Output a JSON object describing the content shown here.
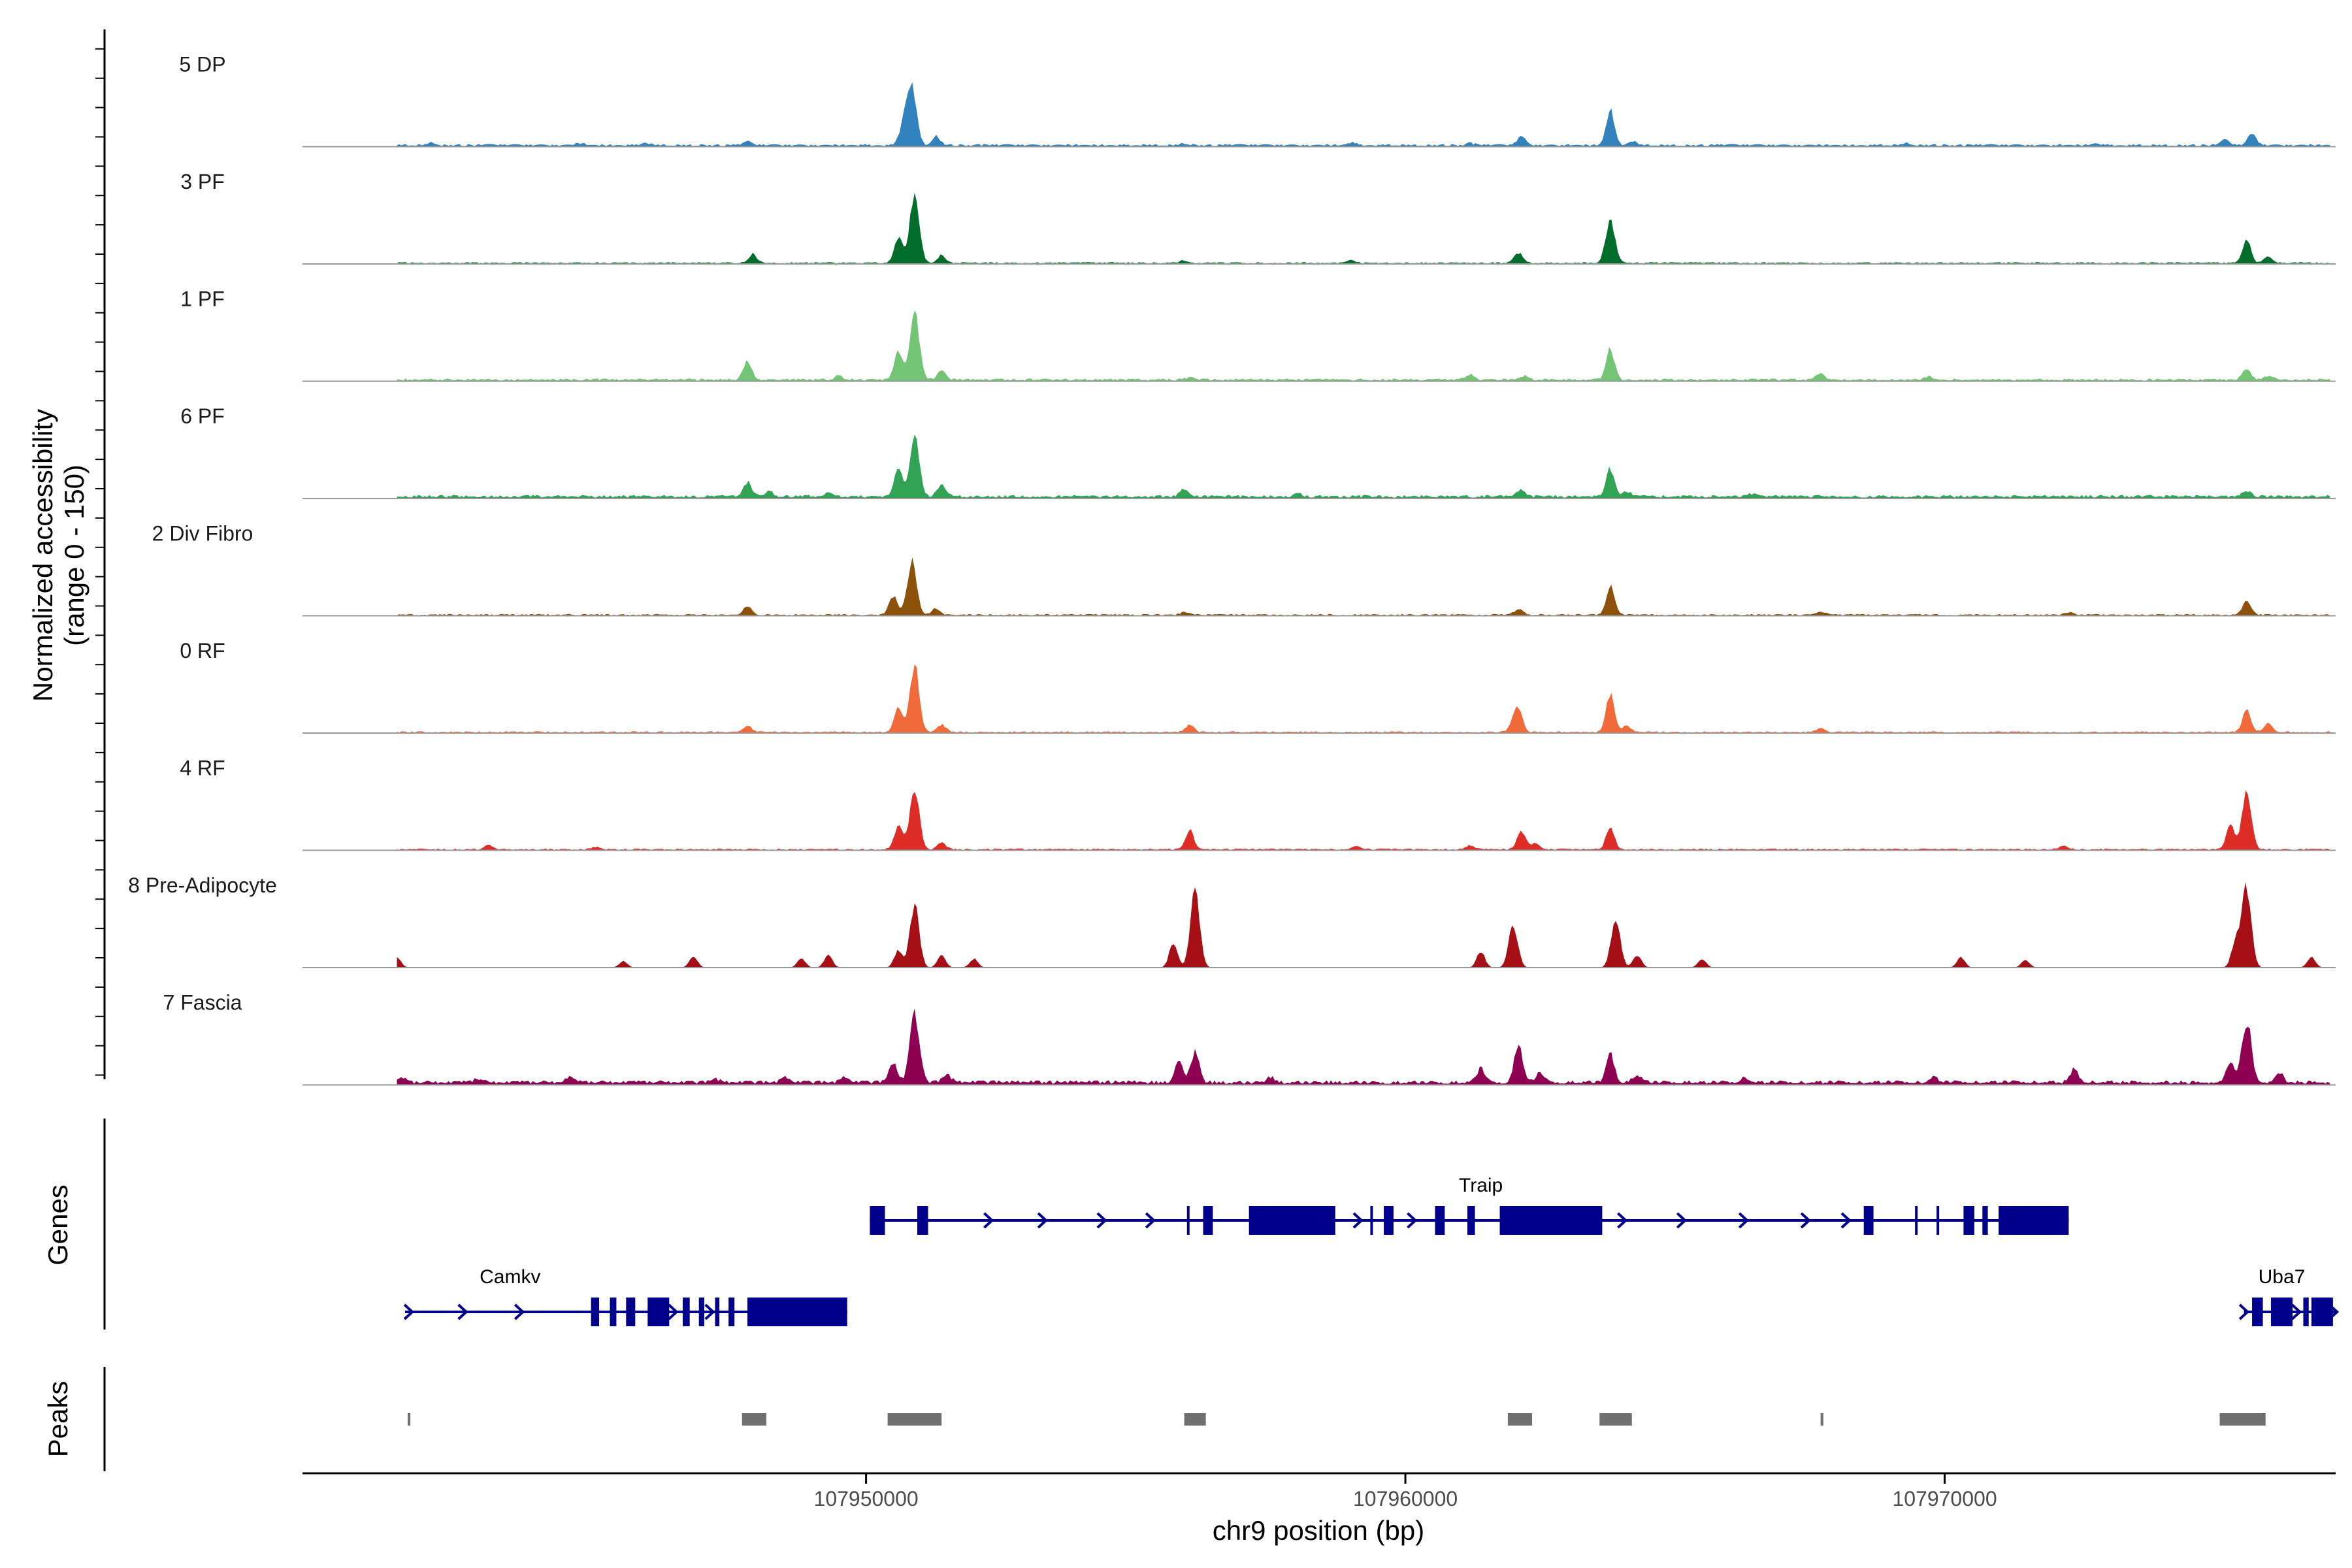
{
  "chart_data": {
    "type": "area",
    "title": "",
    "y_title_line1": "Normalized accessibility",
    "y_title_line2": "(range 0 - 150)",
    "ylim": [
      0,
      150
    ],
    "xlabel": "chr9 position (bp)",
    "xlim": [
      107939550,
      107977250
    ],
    "x_ticks": [
      107950000,
      107960000,
      107970000
    ],
    "x_tick_labels": [
      "107950000",
      "107960000",
      "107970000"
    ],
    "genes_title": "Genes",
    "peaks_title": "Peaks",
    "tracks": [
      {
        "name": "5 DP",
        "color": "#3182bd",
        "bg": 3,
        "peaks": [
          [
            107941950,
            4
          ],
          [
            107944700,
            3
          ],
          [
            107945900,
            4
          ],
          [
            107947800,
            5
          ],
          [
            107950850,
            90
          ],
          [
            107950700,
            35
          ],
          [
            107951300,
            14
          ],
          [
            107955900,
            3
          ],
          [
            107959000,
            4
          ],
          [
            107961200,
            3
          ],
          [
            107962150,
            14
          ],
          [
            107963800,
            55
          ],
          [
            107964200,
            6
          ],
          [
            107969300,
            3
          ],
          [
            107972800,
            3
          ],
          [
            107975700,
            18
          ],
          [
            107975200,
            8
          ]
        ]
      },
      {
        "name": "3 PF",
        "color": "#006d2c",
        "bg": 2,
        "peaks": [
          [
            107947900,
            14
          ],
          [
            107950900,
            110
          ],
          [
            107950600,
            40
          ],
          [
            107951400,
            12
          ],
          [
            107955900,
            4
          ],
          [
            107959000,
            4
          ],
          [
            107962100,
            16
          ],
          [
            107963800,
            65
          ],
          [
            107975600,
            36
          ],
          [
            107976000,
            10
          ]
        ]
      },
      {
        "name": "1 PF",
        "color": "#74c476",
        "bg": 3,
        "peaks": [
          [
            107947800,
            30
          ],
          [
            107949500,
            6
          ],
          [
            107950900,
            110
          ],
          [
            107950600,
            45
          ],
          [
            107951400,
            14
          ],
          [
            107956000,
            4
          ],
          [
            107961200,
            8
          ],
          [
            107962200,
            6
          ],
          [
            107963800,
            50
          ],
          [
            107967700,
            10
          ],
          [
            107969700,
            5
          ],
          [
            107975600,
            18
          ],
          [
            107976000,
            6
          ]
        ]
      },
      {
        "name": "6 PF",
        "color": "#31a354",
        "bg": 4,
        "peaks": [
          [
            107947800,
            22
          ],
          [
            107948200,
            8
          ],
          [
            107949300,
            6
          ],
          [
            107950900,
            95
          ],
          [
            107950600,
            45
          ],
          [
            107951400,
            18
          ],
          [
            107955900,
            12
          ],
          [
            107958000,
            5
          ],
          [
            107962150,
            10
          ],
          [
            107963800,
            45
          ],
          [
            107964100,
            8
          ],
          [
            107966400,
            5
          ],
          [
            107975600,
            9
          ]
        ]
      },
      {
        "name": "2 Div Fibro",
        "color": "#8c510a",
        "bg": 2,
        "peaks": [
          [
            107947800,
            14
          ],
          [
            107950850,
            85
          ],
          [
            107950500,
            30
          ],
          [
            107951300,
            10
          ],
          [
            107955900,
            4
          ],
          [
            107962100,
            10
          ],
          [
            107963800,
            45
          ],
          [
            107967700,
            5
          ],
          [
            107972300,
            4
          ],
          [
            107975600,
            22
          ]
        ]
      },
      {
        "name": "0 RF",
        "color": "#f16a3a",
        "bg": 2,
        "peaks": [
          [
            107947800,
            10
          ],
          [
            107950900,
            105
          ],
          [
            107950600,
            40
          ],
          [
            107951400,
            12
          ],
          [
            107956000,
            12
          ],
          [
            107962100,
            35
          ],
          [
            107962000,
            12
          ],
          [
            107963800,
            60
          ],
          [
            107964100,
            10
          ],
          [
            107967700,
            6
          ],
          [
            107975600,
            36
          ],
          [
            107976000,
            14
          ]
        ]
      },
      {
        "name": "4 RF",
        "color": "#de2d26",
        "bg": 2,
        "peaks": [
          [
            107943000,
            6
          ],
          [
            107945000,
            4
          ],
          [
            107950900,
            100
          ],
          [
            107950600,
            38
          ],
          [
            107951400,
            10
          ],
          [
            107956000,
            30
          ],
          [
            107959100,
            5
          ],
          [
            107961200,
            6
          ],
          [
            107962150,
            28
          ],
          [
            107962400,
            10
          ],
          [
            107963800,
            35
          ],
          [
            107972200,
            6
          ],
          [
            107975600,
            90
          ],
          [
            107975300,
            40
          ]
        ]
      },
      {
        "name": "8 Pre-Adipocyte",
        "color": "#a50f15",
        "bg": 0,
        "peaks": [
          [
            107941300,
            16
          ],
          [
            107945500,
            10
          ],
          [
            107946800,
            18
          ],
          [
            107948800,
            14
          ],
          [
            107949300,
            20
          ],
          [
            107950900,
            100
          ],
          [
            107950600,
            28
          ],
          [
            107951400,
            20
          ],
          [
            107952000,
            14
          ],
          [
            107955700,
            40
          ],
          [
            107956100,
            120
          ],
          [
            107962000,
            65
          ],
          [
            107961400,
            25
          ],
          [
            107963900,
            75
          ],
          [
            107964300,
            20
          ],
          [
            107965500,
            14
          ],
          [
            107970300,
            16
          ],
          [
            107971500,
            12
          ],
          [
            107975600,
            125
          ],
          [
            107975400,
            45
          ],
          [
            107976800,
            16
          ]
        ]
      },
      {
        "name": "7 Fascia",
        "color": "#8e0152",
        "bg": 5,
        "peaks": [
          [
            107941400,
            6
          ],
          [
            107942800,
            6
          ],
          [
            107944500,
            8
          ],
          [
            107947200,
            6
          ],
          [
            107948500,
            8
          ],
          [
            107949600,
            8
          ],
          [
            107950900,
            110
          ],
          [
            107950500,
            30
          ],
          [
            107951500,
            12
          ],
          [
            107955800,
            35
          ],
          [
            107956100,
            50
          ],
          [
            107957500,
            8
          ],
          [
            107961400,
            22
          ],
          [
            107962100,
            60
          ],
          [
            107962500,
            15
          ],
          [
            107963800,
            45
          ],
          [
            107964300,
            12
          ],
          [
            107966300,
            8
          ],
          [
            107969800,
            8
          ],
          [
            107972400,
            20
          ],
          [
            107975600,
            98
          ],
          [
            107975300,
            30
          ],
          [
            107976200,
            15
          ]
        ]
      }
    ],
    "genes": [
      {
        "name": "Traip",
        "row": 1,
        "start": 107950070,
        "end": 107972300,
        "label_x": 107961400,
        "color": "#00008b",
        "exons": [
          [
            107950070,
            107950350
          ],
          [
            107950950,
            107951150
          ],
          [
            107955950,
            107955990
          ],
          [
            107956250,
            107956430
          ],
          [
            107957100,
            107958700
          ],
          [
            107959350,
            107959380
          ],
          [
            107959600,
            107959780
          ],
          [
            107960550,
            107960730
          ],
          [
            107961150,
            107961290
          ],
          [
            107961750,
            107963650
          ],
          [
            107968500,
            107968680
          ],
          [
            107969450,
            107969480
          ],
          [
            107969850,
            107969890
          ],
          [
            107970350,
            107970550
          ],
          [
            107970700,
            107970800
          ],
          [
            107971000,
            107972300
          ]
        ],
        "arrows": [
          107952300,
          107953300,
          107954400,
          107955300,
          107958550,
          107959150,
          107960150,
          107964050,
          107965150,
          107966300,
          107967450,
          107968200
        ]
      },
      {
        "name": "Camkv",
        "row": 2,
        "start": 107941450,
        "end": 107949650,
        "label_x": 107943400,
        "color": "#00008b",
        "exons": [
          [
            107944900,
            107945050
          ],
          [
            107945250,
            107945370
          ],
          [
            107945550,
            107945720
          ],
          [
            107945950,
            107946350
          ],
          [
            107946600,
            107946730
          ],
          [
            107946900,
            107947000
          ],
          [
            107947200,
            107947280
          ],
          [
            107947450,
            107947560
          ],
          [
            107947800,
            107949650
          ]
        ],
        "arrows": [
          107941550,
          107942550,
          107943600,
          107946450,
          107947130
        ]
      },
      {
        "name": "Uba7",
        "row": 2,
        "start": 107975550,
        "end": 107977250,
        "label_x": 107976250,
        "color": "#00008b",
        "exons": [
          [
            107975700,
            107975900
          ],
          [
            107976050,
            107976450
          ],
          [
            107976650,
            107976750
          ],
          [
            107976800,
            107977200
          ]
        ],
        "arrows": [
          107975580,
          107976550,
          107977240
        ]
      }
    ],
    "peaks": [
      [
        107941500,
        107941550
      ],
      [
        107947700,
        107948150
      ],
      [
        107950400,
        107951400
      ],
      [
        107955900,
        107956300
      ],
      [
        107961900,
        107962350
      ],
      [
        107963600,
        107964200
      ],
      [
        107967700,
        107967750
      ],
      [
        107975100,
        107975950
      ]
    ]
  }
}
